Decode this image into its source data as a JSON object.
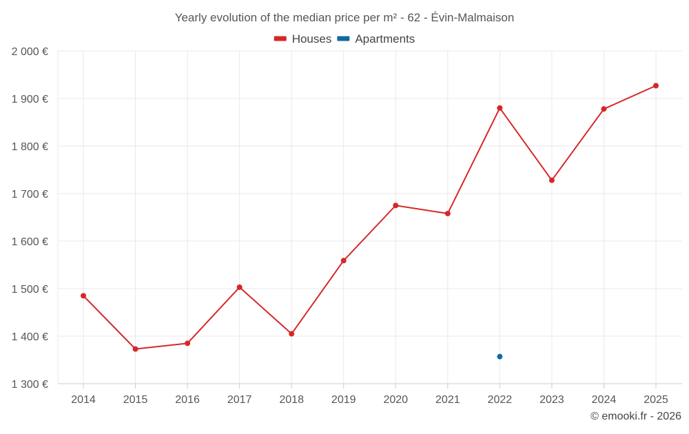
{
  "chart_data": {
    "type": "line",
    "title": "Yearly evolution of the median price per m² - 62 - Évin-Malmaison",
    "categories": [
      "2014",
      "2015",
      "2016",
      "2017",
      "2018",
      "2019",
      "2020",
      "2021",
      "2022",
      "2023",
      "2024",
      "2025"
    ],
    "series": [
      {
        "name": "Houses",
        "color": "#d62728",
        "values": [
          1485,
          1373,
          1385,
          1503,
          1405,
          1559,
          1675,
          1658,
          1880,
          1728,
          1878,
          1927
        ]
      },
      {
        "name": "Apartments",
        "color": "#0f6aa3",
        "values": [
          null,
          null,
          null,
          null,
          null,
          null,
          null,
          null,
          1357,
          null,
          null,
          null
        ]
      }
    ],
    "y_ticks": [
      1300,
      1400,
      1500,
      1600,
      1700,
      1800,
      1900,
      2000
    ],
    "y_tick_labels": [
      "1 300 €",
      "1 400 €",
      "1 500 €",
      "1 600 €",
      "1 700 €",
      "1 800 €",
      "1 900 €",
      "2 000 €"
    ],
    "ylim": [
      1300,
      2000
    ],
    "xlabel": "",
    "ylabel": "",
    "grid": true,
    "legend_position": "top-center"
  },
  "credit": "© emooki.fr - 2026"
}
